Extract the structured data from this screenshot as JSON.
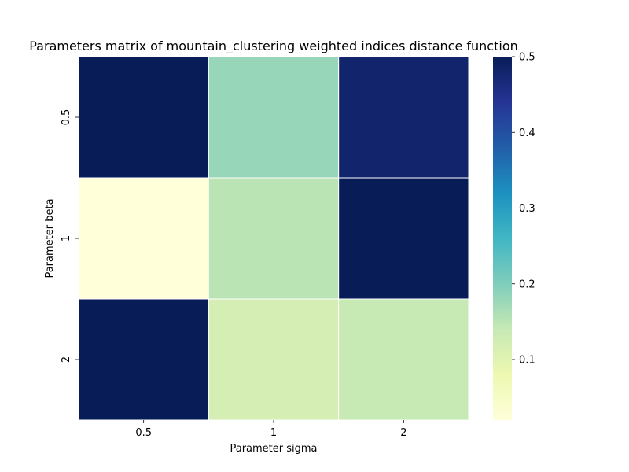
{
  "chart_data": {
    "type": "heatmap",
    "title": "Parameters matrix of mountain_clustering weighted indices distance function",
    "xlabel": "Parameter sigma",
    "ylabel": "Parameter beta",
    "x_categories": [
      "0.5",
      "1",
      "2"
    ],
    "y_categories": [
      "0.5",
      "1",
      "2"
    ],
    "values": [
      [
        0.5,
        0.18,
        0.48
      ],
      [
        0.02,
        0.15,
        0.5
      ],
      [
        0.5,
        0.12,
        0.14
      ]
    ],
    "colorbar": {
      "min": 0.02,
      "max": 0.5,
      "ticks": [
        0.1,
        0.2,
        0.3,
        0.4,
        0.5
      ],
      "tick_labels": [
        "0.1",
        "0.2",
        "0.3",
        "0.4",
        "0.5"
      ],
      "colormap": "YlGnBu"
    },
    "gridlines": "white"
  }
}
